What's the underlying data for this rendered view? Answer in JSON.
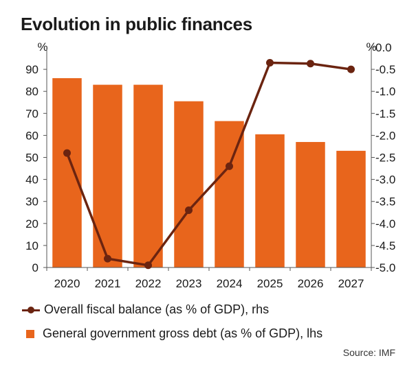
{
  "title": "Evolution in public finances",
  "source": "Source: IMF",
  "colors": {
    "bar": "#e8651c",
    "line": "#6b2410",
    "axis": "#555555"
  },
  "chart_data": {
    "type": "bar",
    "categories": [
      "2020",
      "2021",
      "2022",
      "2023",
      "2024",
      "2025",
      "2026",
      "2027"
    ],
    "series": [
      {
        "name": "General government gross debt (as % of GDP), lhs",
        "type": "bar",
        "axis": "left",
        "values": [
          86,
          83,
          83,
          75.5,
          66.5,
          60.5,
          57,
          53
        ]
      },
      {
        "name": "Overall fiscal balance (as % of GDP), rhs",
        "type": "line",
        "axis": "right",
        "values": [
          -2.4,
          -4.8,
          -4.95,
          -3.7,
          -2.7,
          -0.35,
          -0.37,
          -0.5
        ]
      }
    ],
    "ylabel_left": "%",
    "ylabel_right": "%",
    "ylim_left": [
      0,
      100
    ],
    "ylim_right": [
      -5.0,
      0.0
    ],
    "yticks_left": [
      "0",
      "10",
      "20",
      "30",
      "40",
      "50",
      "60",
      "70",
      "80",
      "90"
    ],
    "yticks_right": [
      "0.0",
      "-0.5",
      "-1.0",
      "-1.5",
      "-2.0",
      "-2.5",
      "-3.0",
      "-3.5",
      "-4.0",
      "-4.5",
      "-5.0"
    ],
    "grid": false,
    "legend_position": "bottom"
  }
}
